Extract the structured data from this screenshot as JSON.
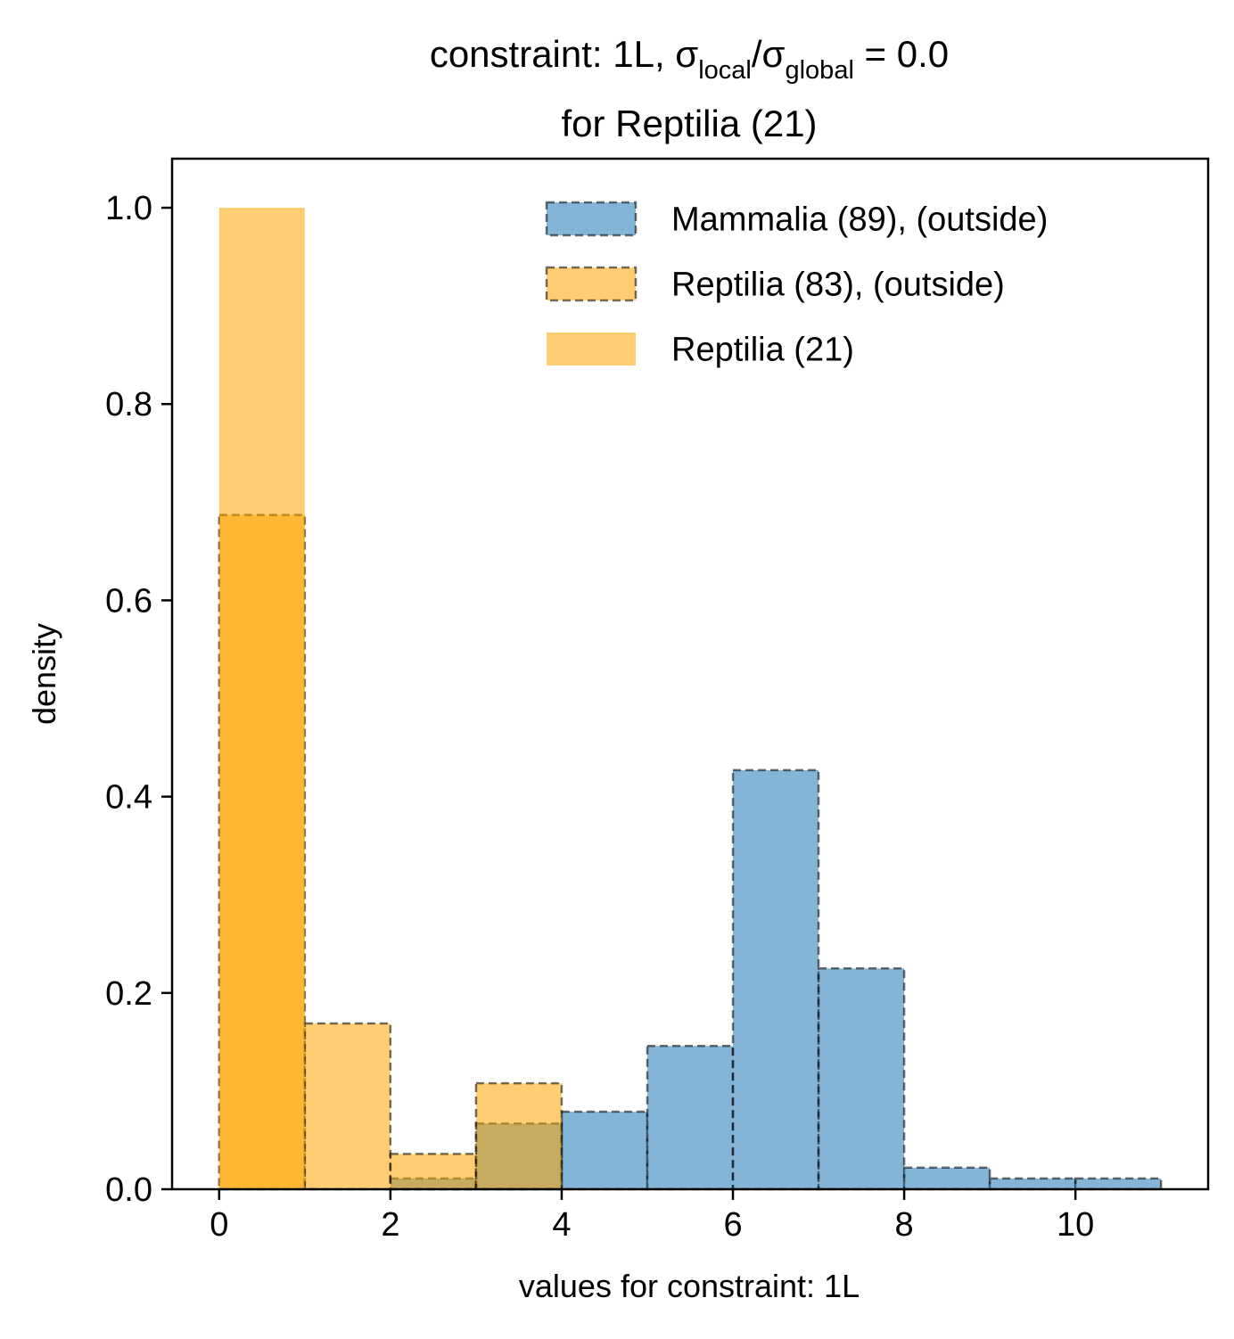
{
  "chart_data": {
    "type": "bar",
    "title_line1_prefix": "constraint: 1L, σ",
    "title_sub1": "local",
    "title_mid": "/σ",
    "title_sub2": "global",
    "title_suffix": " =  0.0",
    "title_line2": "for Reptilia (21)",
    "xlabel": "values for constraint: 1L",
    "ylabel": "density",
    "xlim": [
      -0.55,
      11.55
    ],
    "ylim": [
      0,
      1.05
    ],
    "xticks": [
      0,
      2,
      4,
      6,
      8,
      10
    ],
    "xtick_labels": [
      "0",
      "2",
      "4",
      "6",
      "8",
      "10"
    ],
    "yticks": [
      0.0,
      0.2,
      0.4,
      0.6,
      0.8,
      1.0
    ],
    "ytick_labels": [
      "0.0",
      "0.2",
      "0.4",
      "0.6",
      "0.8",
      "1.0"
    ],
    "bin_edges": [
      0,
      1,
      2,
      3,
      4,
      5,
      6,
      7,
      8,
      9,
      10,
      11
    ],
    "legend_position": "top-right",
    "series": [
      {
        "name": "Mammalia (89), (outside)",
        "color": "#1f77b4",
        "style": "dashed",
        "values": [
          0.0,
          0.0,
          0.011,
          0.067,
          0.079,
          0.146,
          0.427,
          0.225,
          0.022,
          0.011,
          0.011
        ]
      },
      {
        "name": "Reptilia (83), (outside)",
        "color": "#ffa500",
        "style": "dashed",
        "values": [
          0.687,
          0.169,
          0.036,
          0.108,
          0.0,
          0.0,
          0.0,
          0.0,
          0.0,
          0.0,
          0.0
        ]
      },
      {
        "name": "Reptilia (21)",
        "color": "#ffa500",
        "style": "solid",
        "values": [
          1.0,
          0.0,
          0.0,
          0.0,
          0.0,
          0.0,
          0.0,
          0.0,
          0.0,
          0.0,
          0.0
        ]
      }
    ]
  }
}
